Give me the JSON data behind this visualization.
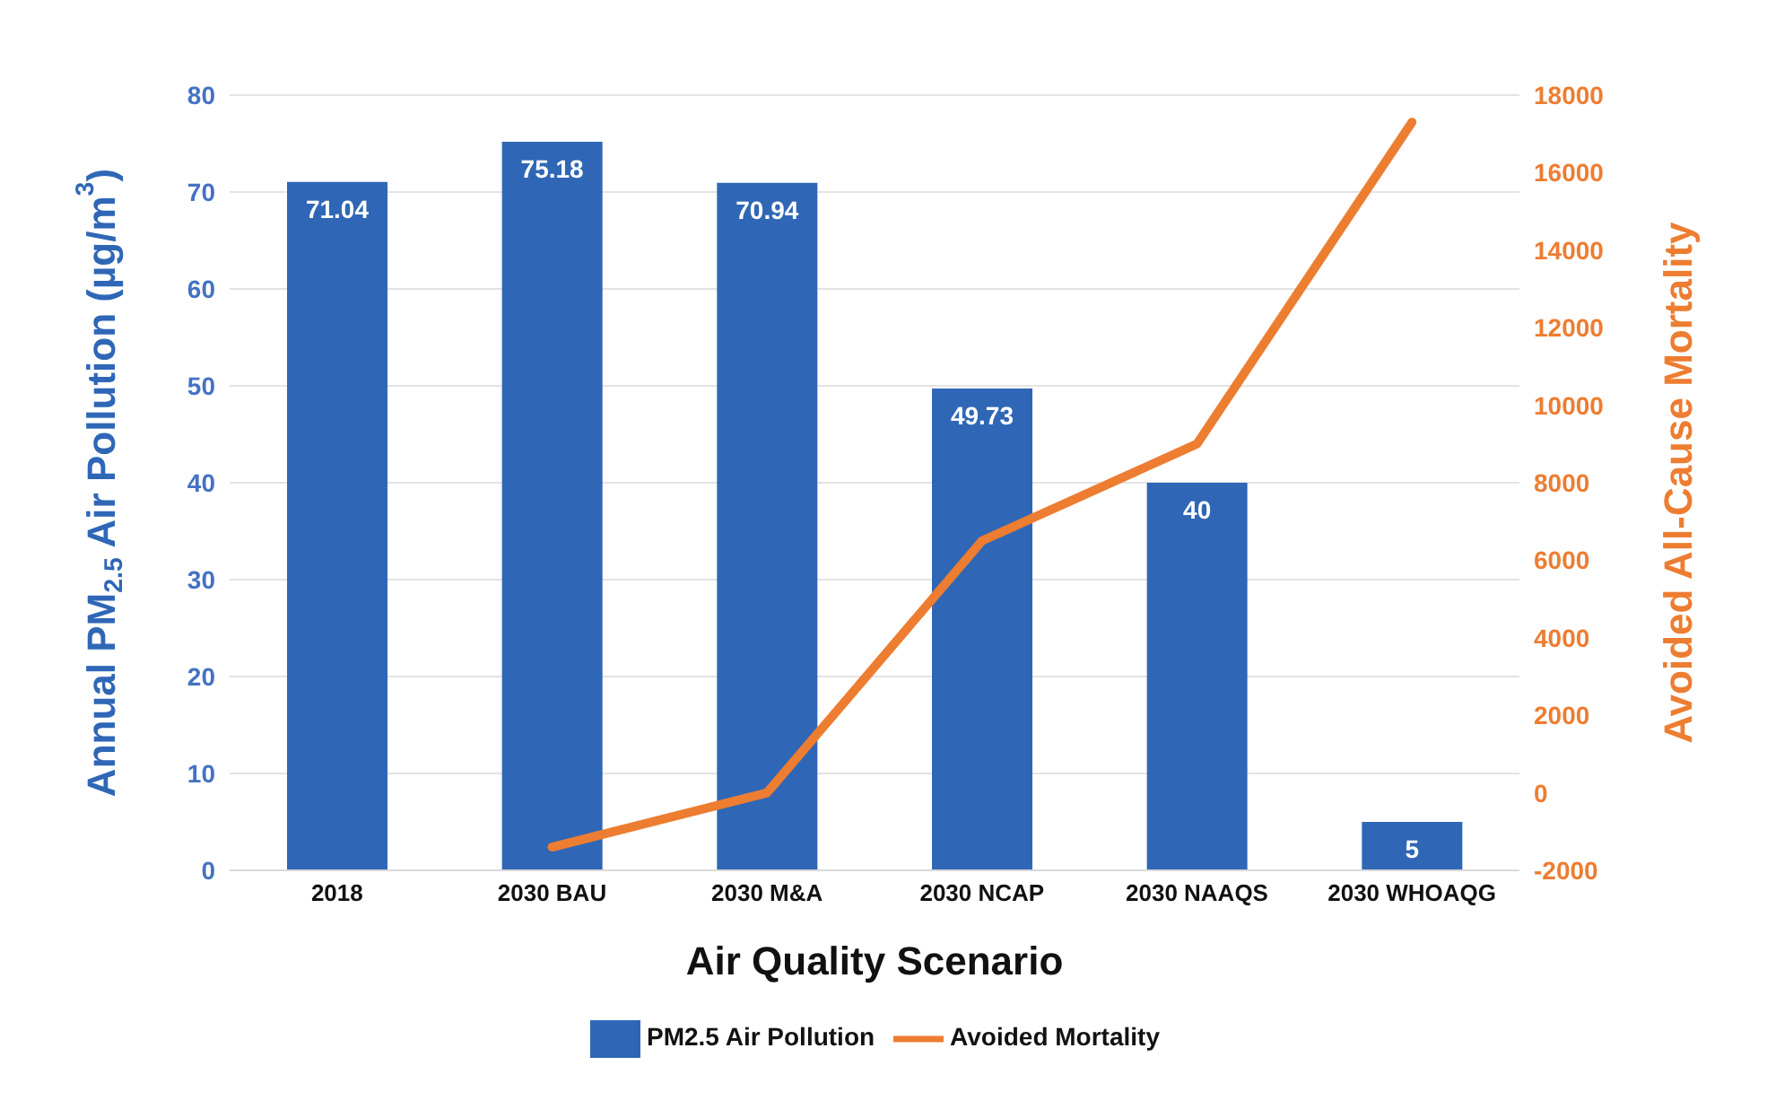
{
  "chart_data": {
    "type": "bar",
    "xlabel": "Air Quality Scenario",
    "ylabel": "Annual PM$_{2.5}$ Air Pollution (µg/m$^{3}$)",
    "y2label": "Avoided All-Cause Mortality",
    "categories": [
      "2018",
      "2030 BAU",
      "2030 M&A",
      "2030 NCAP",
      "2030 NAAQS",
      "2030 WHOAQG"
    ],
    "series": [
      {
        "name": "PM2.5 Air Pollution",
        "color": "#2f67b6",
        "values": [
          71.04,
          75.18,
          70.94,
          49.73,
          40,
          5
        ],
        "value_labels": [
          "71.04",
          "75.18",
          "70.94",
          "49.73",
          "40",
          "5"
        ]
      },
      {
        "name": "Avoided Mortality",
        "type": "line",
        "axis": "y2",
        "color": "#ed7d31",
        "values": [
          null,
          -1400,
          0,
          6500,
          9000,
          17300
        ]
      }
    ],
    "ylim": [
      0,
      80
    ],
    "yticks": [
      0,
      10,
      20,
      30,
      40,
      50,
      60,
      70,
      80
    ],
    "y2lim": [
      -2000,
      18000
    ],
    "y2ticks": [
      -2000,
      0,
      2000,
      4000,
      6000,
      8000,
      10000,
      12000,
      14000,
      16000,
      18000
    ],
    "grid": "y",
    "legend": "bottom",
    "marker": "none"
  }
}
